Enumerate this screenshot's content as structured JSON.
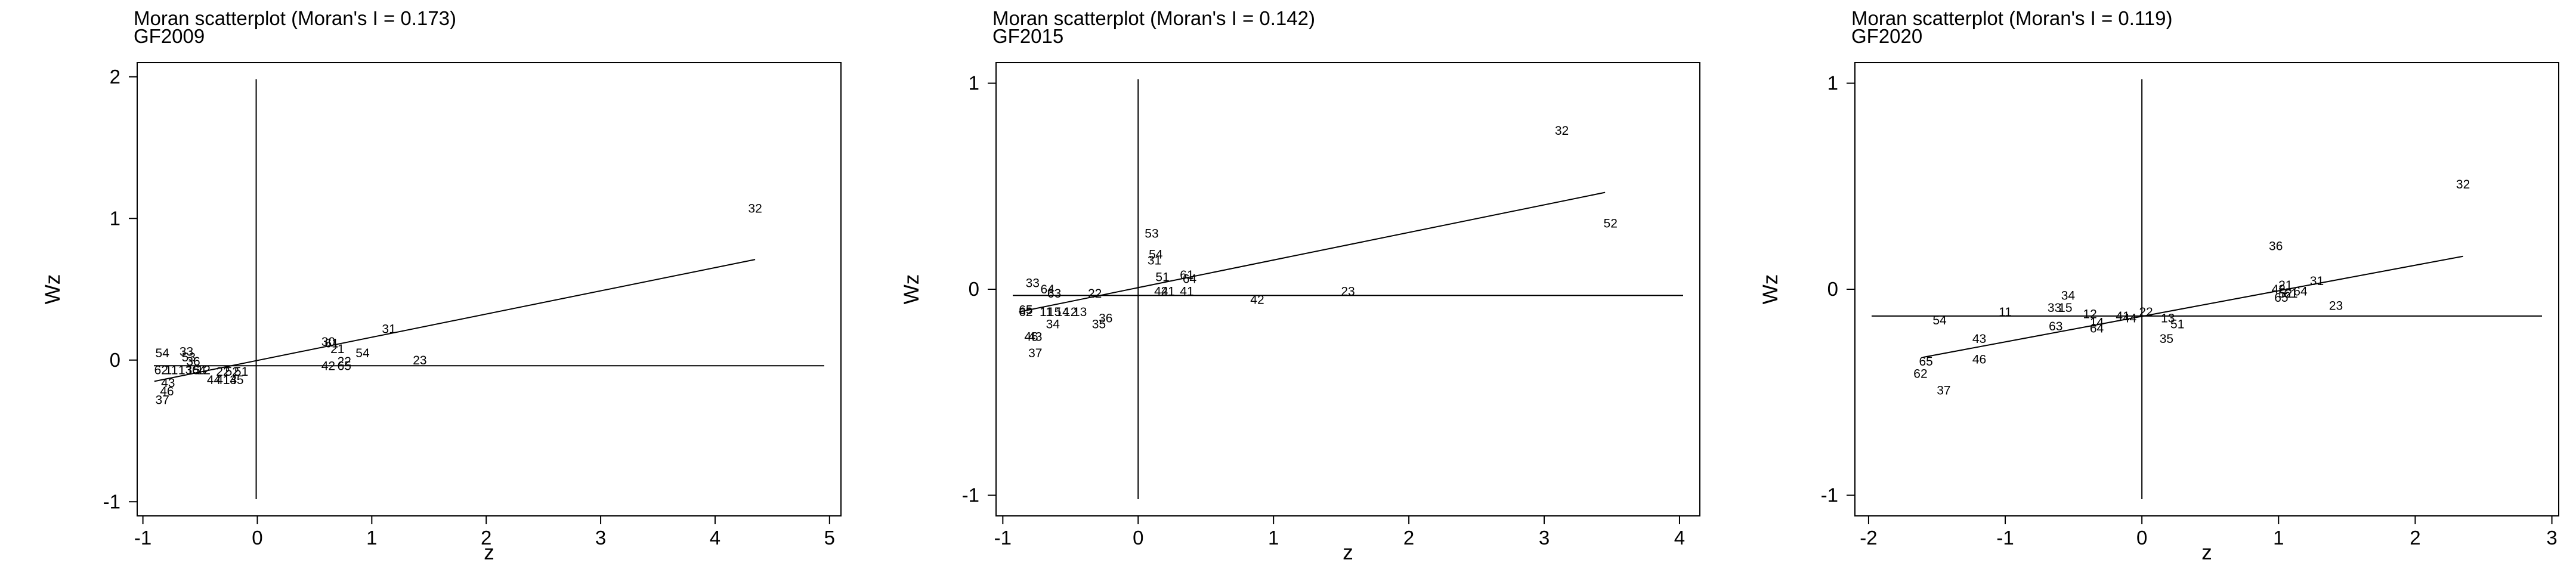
{
  "chart_data": [
    {
      "type": "scatter",
      "title": "Moran scatterplot (Moran's I = 0.173)",
      "subtitle": "GF2009",
      "xlabel": "z",
      "ylabel": "Wz",
      "xlim": [
        -1.05,
        5.1
      ],
      "ylim": [
        -1.1,
        2.1
      ],
      "xticks": [
        -1,
        0,
        1,
        2,
        3,
        4,
        5
      ],
      "yticks": [
        -1,
        0,
        1,
        2
      ],
      "hline_y": -0.04,
      "vline_x": -0.01,
      "fit": {
        "x": [
          -0.9,
          4.35
        ],
        "y": [
          -0.15,
          0.71
        ]
      },
      "points": [
        {
          "label": "32",
          "x": 4.35,
          "y": 1.07
        },
        {
          "label": "31",
          "x": 1.15,
          "y": 0.22
        },
        {
          "label": "30",
          "x": 0.62,
          "y": 0.13
        },
        {
          "label": "61",
          "x": 0.65,
          "y": 0.12
        },
        {
          "label": "21",
          "x": 0.7,
          "y": 0.08
        },
        {
          "label": "54",
          "x": 0.92,
          "y": 0.05
        },
        {
          "label": "23",
          "x": 1.42,
          "y": 0.0
        },
        {
          "label": "22",
          "x": 0.76,
          "y": -0.01
        },
        {
          "label": "42",
          "x": 0.62,
          "y": -0.04
        },
        {
          "label": "65",
          "x": 0.76,
          "y": -0.04
        },
        {
          "label": "54",
          "x": -0.83,
          "y": 0.05
        },
        {
          "label": "33",
          "x": -0.62,
          "y": 0.06
        },
        {
          "label": "53",
          "x": -0.6,
          "y": 0.02
        },
        {
          "label": "36",
          "x": -0.56,
          "y": -0.01
        },
        {
          "label": "62",
          "x": -0.84,
          "y": -0.07
        },
        {
          "label": "11",
          "x": -0.75,
          "y": -0.07
        },
        {
          "label": "13",
          "x": -0.63,
          "y": -0.07
        },
        {
          "label": "15",
          "x": -0.56,
          "y": -0.07
        },
        {
          "label": "64",
          "x": -0.51,
          "y": -0.07
        },
        {
          "label": "12",
          "x": -0.47,
          "y": -0.07
        },
        {
          "label": "22",
          "x": -0.3,
          "y": -0.08
        },
        {
          "label": "52",
          "x": -0.22,
          "y": -0.08
        },
        {
          "label": "51",
          "x": -0.14,
          "y": -0.08
        },
        {
          "label": "44",
          "x": -0.38,
          "y": -0.14
        },
        {
          "label": "41",
          "x": -0.3,
          "y": -0.14
        },
        {
          "label": "14",
          "x": -0.24,
          "y": -0.14
        },
        {
          "label": "35",
          "x": -0.18,
          "y": -0.14
        },
        {
          "label": "43",
          "x": -0.78,
          "y": -0.16
        },
        {
          "label": "46",
          "x": -0.79,
          "y": -0.22
        },
        {
          "label": "37",
          "x": -0.83,
          "y": -0.28
        }
      ]
    },
    {
      "type": "scatter",
      "title": "Moran scatterplot (Moran's I = 0.142)",
      "subtitle": "GF2015",
      "xlabel": "z",
      "ylabel": "Wz",
      "xlim": [
        -1.05,
        4.15
      ],
      "ylim": [
        -1.1,
        1.1
      ],
      "xticks": [
        -1,
        0,
        1,
        2,
        3,
        4
      ],
      "yticks": [
        -1,
        0,
        1
      ],
      "hline_y": -0.03,
      "vline_x": 0.0,
      "fit": {
        "x": [
          -0.88,
          3.45
        ],
        "y": [
          -0.11,
          0.47
        ]
      },
      "points": [
        {
          "label": "32",
          "x": 3.13,
          "y": 0.77
        },
        {
          "label": "52",
          "x": 3.49,
          "y": 0.32
        },
        {
          "label": "53",
          "x": 0.1,
          "y": 0.27
        },
        {
          "label": "54",
          "x": 0.13,
          "y": 0.17
        },
        {
          "label": "31",
          "x": 0.12,
          "y": 0.14
        },
        {
          "label": "51",
          "x": 0.18,
          "y": 0.06
        },
        {
          "label": "61",
          "x": 0.36,
          "y": 0.07
        },
        {
          "label": "64",
          "x": 0.38,
          "y": 0.05
        },
        {
          "label": "44",
          "x": 0.17,
          "y": -0.01
        },
        {
          "label": "21",
          "x": 0.22,
          "y": -0.01
        },
        {
          "label": "41",
          "x": 0.36,
          "y": -0.01
        },
        {
          "label": "42",
          "x": 0.88,
          "y": -0.05
        },
        {
          "label": "23",
          "x": 1.55,
          "y": -0.01
        },
        {
          "label": "33",
          "x": -0.78,
          "y": 0.03
        },
        {
          "label": "64",
          "x": -0.67,
          "y": 0.0
        },
        {
          "label": "63",
          "x": -0.62,
          "y": -0.02
        },
        {
          "label": "22",
          "x": -0.32,
          "y": -0.02
        },
        {
          "label": "65",
          "x": -0.83,
          "y": -0.1
        },
        {
          "label": "62",
          "x": -0.83,
          "y": -0.11
        },
        {
          "label": "11",
          "x": -0.68,
          "y": -0.11
        },
        {
          "label": "15",
          "x": -0.62,
          "y": -0.11
        },
        {
          "label": "14",
          "x": -0.56,
          "y": -0.11
        },
        {
          "label": "12",
          "x": -0.5,
          "y": -0.11
        },
        {
          "label": "13",
          "x": -0.43,
          "y": -0.11
        },
        {
          "label": "36",
          "x": -0.24,
          "y": -0.14
        },
        {
          "label": "34",
          "x": -0.63,
          "y": -0.17
        },
        {
          "label": "35",
          "x": -0.29,
          "y": -0.17
        },
        {
          "label": "46",
          "x": -0.79,
          "y": -0.23
        },
        {
          "label": "43",
          "x": -0.76,
          "y": -0.23
        },
        {
          "label": "37",
          "x": -0.76,
          "y": -0.31
        }
      ]
    },
    {
      "type": "scatter",
      "title": "Moran scatterplot (Moran's I = 0.119)",
      "subtitle": "GF2020",
      "xlabel": "z",
      "ylabel": "Wz",
      "xlim": [
        -2.1,
        3.05
      ],
      "ylim": [
        -1.1,
        1.1
      ],
      "xticks": [
        -2,
        -1,
        0,
        1,
        2,
        3
      ],
      "yticks": [
        -1,
        0,
        1
      ],
      "hline_y": -0.13,
      "vline_x": 0.0,
      "fit": {
        "x": [
          -1.6,
          2.35
        ],
        "y": [
          -0.33,
          0.16
        ]
      },
      "points": [
        {
          "label": "32",
          "x": 2.35,
          "y": 0.51
        },
        {
          "label": "36",
          "x": 0.98,
          "y": 0.21
        },
        {
          "label": "21",
          "x": 1.05,
          "y": 0.02
        },
        {
          "label": "31",
          "x": 1.28,
          "y": 0.04
        },
        {
          "label": "42",
          "x": 1.0,
          "y": 0.0
        },
        {
          "label": "52",
          "x": 1.05,
          "y": -0.02
        },
        {
          "label": "61",
          "x": 1.09,
          "y": -0.02
        },
        {
          "label": "64",
          "x": 1.16,
          "y": -0.01
        },
        {
          "label": "65",
          "x": 1.02,
          "y": -0.04
        },
        {
          "label": "23",
          "x": 1.42,
          "y": -0.08
        },
        {
          "label": "54",
          "x": -1.48,
          "y": -0.15
        },
        {
          "label": "11",
          "x": -1.0,
          "y": -0.11
        },
        {
          "label": "34",
          "x": -0.54,
          "y": -0.03
        },
        {
          "label": "33",
          "x": -0.64,
          "y": -0.09
        },
        {
          "label": "15",
          "x": -0.56,
          "y": -0.09
        },
        {
          "label": "63",
          "x": -0.63,
          "y": -0.18
        },
        {
          "label": "12",
          "x": -0.38,
          "y": -0.12
        },
        {
          "label": "14",
          "x": -0.33,
          "y": -0.16
        },
        {
          "label": "64",
          "x": -0.33,
          "y": -0.19
        },
        {
          "label": "41",
          "x": -0.14,
          "y": -0.13
        },
        {
          "label": "44",
          "x": -0.09,
          "y": -0.14
        },
        {
          "label": "22",
          "x": 0.03,
          "y": -0.11
        },
        {
          "label": "13",
          "x": 0.19,
          "y": -0.14
        },
        {
          "label": "51",
          "x": 0.26,
          "y": -0.17
        },
        {
          "label": "35",
          "x": 0.18,
          "y": -0.24
        },
        {
          "label": "43",
          "x": -1.19,
          "y": -0.24
        },
        {
          "label": "46",
          "x": -1.19,
          "y": -0.34
        },
        {
          "label": "65",
          "x": -1.58,
          "y": -0.35
        },
        {
          "label": "62",
          "x": -1.62,
          "y": -0.41
        },
        {
          "label": "37",
          "x": -1.45,
          "y": -0.49
        }
      ]
    }
  ]
}
